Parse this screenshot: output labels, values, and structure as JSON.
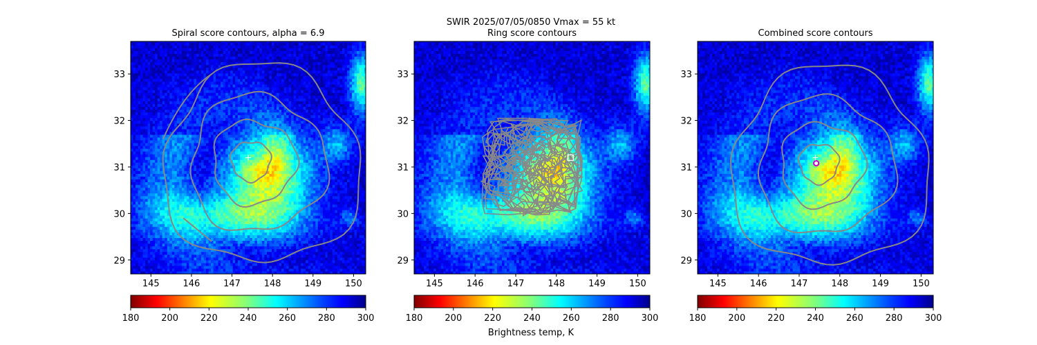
{
  "figure": {
    "suptitle_line1": "SWIR  2025/07/05/0850    Vmax = 55 kt",
    "colorbar_label": "Brightness temp, K"
  },
  "chart_data": [
    {
      "type": "heatmap",
      "title": "Spiral score contours, alpha =  6.9",
      "xlim": [
        144.5,
        150.3
      ],
      "ylim": [
        28.7,
        33.7
      ],
      "xticks": [
        145,
        146,
        147,
        148,
        149,
        150
      ],
      "yticks": [
        29,
        30,
        31,
        32,
        33
      ],
      "colorbar": {
        "min": 180,
        "max": 300,
        "ticks": [
          180,
          200,
          220,
          240,
          260,
          280,
          300
        ],
        "colormap": "jet_r"
      },
      "contour_color": "#888888",
      "center_marker": {
        "symbol": "+",
        "x": 147.4,
        "y": 31.2,
        "color": "#ffffff"
      },
      "spiral_contours": true
    },
    {
      "type": "heatmap",
      "title": "Ring score contours",
      "xlim": [
        144.5,
        150.3
      ],
      "ylim": [
        28.7,
        33.7
      ],
      "xticks": [
        145,
        146,
        147,
        148,
        149,
        150
      ],
      "yticks": [
        29,
        30,
        31,
        32,
        33
      ],
      "colorbar": {
        "min": 180,
        "max": 300,
        "ticks": [
          180,
          200,
          220,
          240,
          260,
          280,
          300
        ],
        "colormap": "jet_r"
      },
      "contour_color": "#888888",
      "center_marker": {
        "symbol": "square",
        "x": 148.35,
        "y": 31.2,
        "color": "#ffffff"
      },
      "ring_contours": true
    },
    {
      "type": "heatmap",
      "title": "Combined score contours",
      "xlim": [
        144.5,
        150.3
      ],
      "ylim": [
        28.7,
        33.7
      ],
      "xticks": [
        145,
        146,
        147,
        148,
        149,
        150
      ],
      "yticks": [
        29,
        30,
        31,
        32,
        33
      ],
      "colorbar": {
        "min": 180,
        "max": 300,
        "ticks": [
          180,
          200,
          220,
          240,
          260,
          280,
          300
        ],
        "colormap": "jet_r"
      },
      "contour_color": "#888888",
      "center_marker": {
        "symbol": "circle",
        "x": 147.42,
        "y": 31.08,
        "color": "#cc00cc"
      },
      "secondary_marker": {
        "symbol": "+",
        "x": 147.4,
        "y": 31.2,
        "color": "#ffffff"
      },
      "spiral_contours": true
    }
  ]
}
